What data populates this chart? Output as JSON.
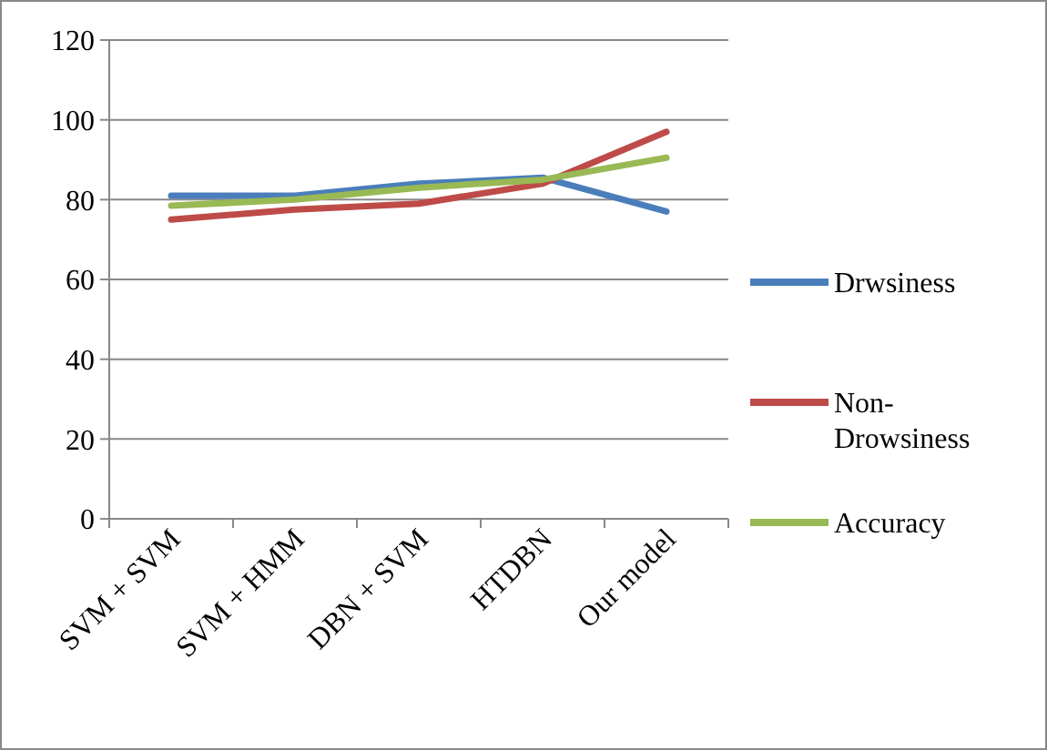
{
  "chart_data": {
    "type": "line",
    "categories": [
      "SVM + SVM",
      "SVM + HMM",
      "DBN + SVM",
      "HTDBN",
      "Our model"
    ],
    "series": [
      {
        "name": "Drwsiness",
        "color": "#4a7ebb",
        "values": [
          81,
          81,
          84,
          85.5,
          77
        ]
      },
      {
        "name": "Non-Drowsiness",
        "color": "#be4b48",
        "values": [
          75,
          77.5,
          79,
          84,
          97
        ]
      },
      {
        "name": "Accuracy",
        "color": "#98b954",
        "values": [
          78.5,
          80,
          83,
          85,
          90.5
        ]
      }
    ],
    "ylim": [
      0,
      120
    ],
    "yticks": [
      0,
      20,
      40,
      60,
      80,
      100,
      120
    ],
    "grid": "y",
    "legend": "right",
    "marker": "none"
  }
}
